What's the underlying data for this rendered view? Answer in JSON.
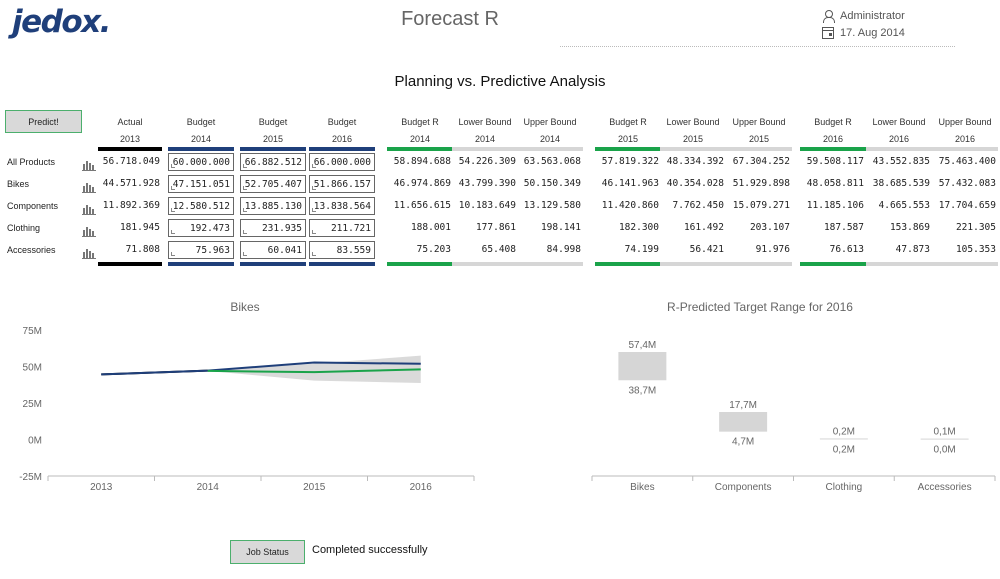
{
  "header": {
    "logo": "jedox",
    "logo_dot": ".",
    "title": "Forecast R",
    "user": "Administrator",
    "date": "17. Aug 2014"
  },
  "main_title": "Planning vs. Predictive Analysis",
  "predict_label": "Predict!",
  "columns": [
    {
      "l1": "Actual",
      "l2": "2013",
      "bar": "#000000"
    },
    {
      "l1": "Budget",
      "l2": "2014",
      "bar": "#1f3f7a"
    },
    {
      "l1": "Budget",
      "l2": "2015",
      "bar": "#1f3f7a"
    },
    {
      "l1": "Budget",
      "l2": "2016",
      "bar": "#1f3f7a"
    },
    {
      "l1": "Budget R",
      "l2": "2014",
      "bar": "#1aa34a"
    },
    {
      "l1": "Lower Bound",
      "l2": "2014",
      "bar": "#d6d6d6"
    },
    {
      "l1": "Upper Bound",
      "l2": "2014",
      "bar": "#d6d6d6"
    },
    {
      "l1": "Budget R",
      "l2": "2015",
      "bar": "#1aa34a"
    },
    {
      "l1": "Lower Bound",
      "l2": "2015",
      "bar": "#d6d6d6"
    },
    {
      "l1": "Upper Bound",
      "l2": "2015",
      "bar": "#d6d6d6"
    },
    {
      "l1": "Budget R",
      "l2": "2016",
      "bar": "#1aa34a"
    },
    {
      "l1": "Lower Bound",
      "l2": "2016",
      "bar": "#d6d6d6"
    },
    {
      "l1": "Upper Bound",
      "l2": "2016",
      "bar": "#d6d6d6"
    }
  ],
  "rows": [
    {
      "label": "All Products",
      "values": [
        "56.718.049",
        "60.000.000",
        "66.882.512",
        "66.000.000",
        "58.894.688",
        "54.226.309",
        "63.563.068",
        "57.819.322",
        "48.334.392",
        "67.304.252",
        "59.508.117",
        "43.552.835",
        "75.463.400"
      ]
    },
    {
      "label": "Bikes",
      "values": [
        "44.571.928",
        "47.151.051",
        "52.705.407",
        "51.866.157",
        "46.974.869",
        "43.799.390",
        "50.150.349",
        "46.141.963",
        "40.354.028",
        "51.929.898",
        "48.058.811",
        "38.685.539",
        "57.432.083"
      ]
    },
    {
      "label": "Components",
      "values": [
        "11.892.369",
        "12.580.512",
        "13.885.130",
        "13.838.564",
        "11.656.615",
        "10.183.649",
        "13.129.580",
        "11.420.860",
        "7.762.450",
        "15.079.271",
        "11.185.106",
        "4.665.553",
        "17.704.659"
      ]
    },
    {
      "label": "Clothing",
      "values": [
        "181.945",
        "192.473",
        "231.935",
        "211.721",
        "188.001",
        "177.861",
        "198.141",
        "182.300",
        "161.492",
        "203.107",
        "187.587",
        "153.869",
        "221.305"
      ]
    },
    {
      "label": "Accessories",
      "values": [
        "71.808",
        "75.963",
        "60.041",
        "83.559",
        "75.203",
        "65.408",
        "84.998",
        "74.199",
        "56.421",
        "91.976",
        "76.613",
        "47.873",
        "105.353"
      ]
    }
  ],
  "chart_data": [
    {
      "type": "line",
      "title": "Bikes",
      "x": [
        "2013",
        "2014",
        "2015",
        "2016"
      ],
      "ylim": [
        -25,
        75
      ],
      "yticks": [
        "75M",
        "50M",
        "25M",
        "0M",
        "-25M"
      ],
      "ytick_values": [
        75,
        50,
        25,
        0,
        -25
      ],
      "series": [
        {
          "values": [
            44.57,
            47.15,
            52.71,
            51.87
          ],
          "color": "#1f3f7a"
        },
        {
          "values": [
            null,
            46.97,
            46.14,
            48.06
          ],
          "color": "#1aa34a"
        },
        {
          "values": [
            44.57,
            47.15,
            null,
            null
          ],
          "color": "#000000"
        }
      ],
      "band": {
        "lower": [
          null,
          46.97,
          40.35,
          38.69
        ],
        "upper": [
          null,
          46.97,
          51.93,
          57.43
        ],
        "color": "#d6d6d6"
      }
    },
    {
      "type": "bar",
      "title": "R-Predicted Target Range for 2016",
      "categories": [
        "Bikes",
        "Components",
        "Clothing",
        "Accessories"
      ],
      "upper": [
        57.4,
        17.7,
        0.2,
        0.1
      ],
      "lower": [
        38.7,
        4.7,
        0.2,
        0.0
      ],
      "upper_labels": [
        "57,4M",
        "17,7M",
        "0,2M",
        "0,1M"
      ],
      "lower_labels": [
        "38,7M",
        "4,7M",
        "0,2M",
        "0,0M"
      ],
      "color": "#d6d6d6"
    }
  ],
  "job_status_label": "Job Status",
  "job_status_text": "Completed successfully"
}
